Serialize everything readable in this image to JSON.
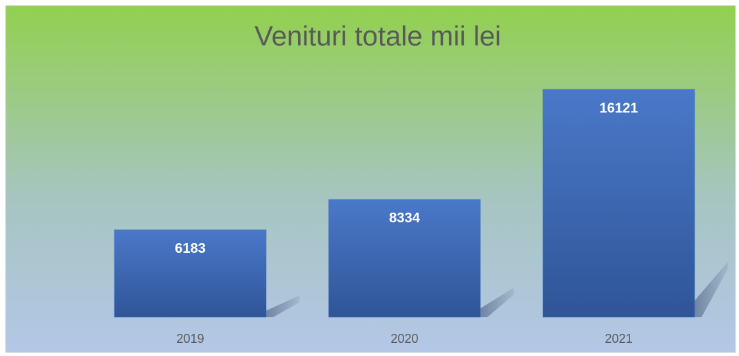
{
  "chart_data": {
    "type": "bar",
    "title": "Venituri totale mii lei",
    "categories": [
      "2019",
      "2020",
      "2021"
    ],
    "values": [
      6183,
      8334,
      16121
    ],
    "color": "#4472c4"
  }
}
